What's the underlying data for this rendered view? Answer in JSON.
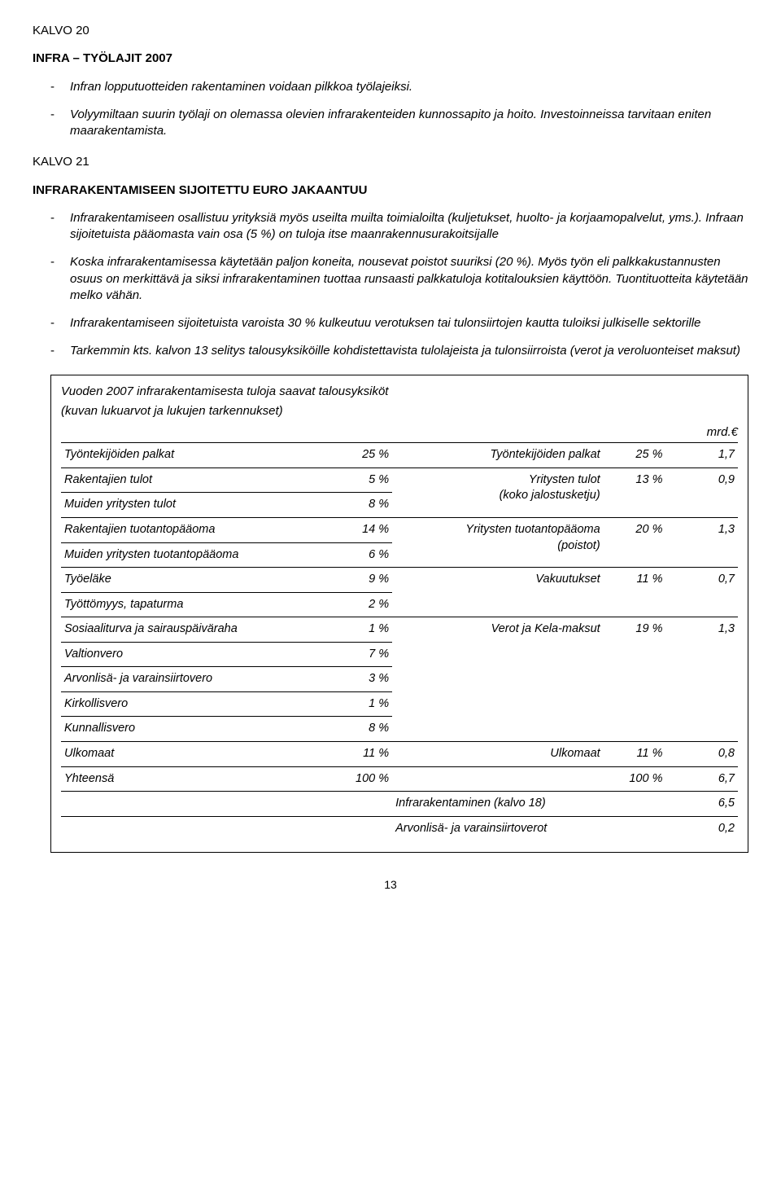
{
  "kalvo20": {
    "label": "KALVO 20",
    "title": "INFRA – TYÖLAJIT 2007",
    "bullets": [
      "Infran lopputuotteiden rakentaminen voidaan pilkkoa työlajeiksi.",
      "Volyymiltaan suurin työlaji on olemassa olevien infrarakenteiden kunnossapito ja hoito. Investoinneissa tarvitaan eniten maarakentamista."
    ]
  },
  "kalvo21": {
    "label": "KALVO 21",
    "title": "INFRARAKENTAMISEEN SIJOITETTU EURO JAKAANTUU",
    "bullets": [
      "Infrarakentamiseen osallistuu yrityksiä myös useilta muilta toimialoilta (kuljetukset, huolto- ja korjaamopalvelut, yms.). Infraan sijoitetuista pääomasta vain osa (5 %) on tuloja itse maanrakennusurakoitsijalle",
      "Koska infrarakentamisessa käytetään paljon koneita, nousevat poistot suuriksi (20 %). Myös työn eli palkkakustannusten osuus on merkittävä ja siksi infrarakentaminen tuottaa runsaasti palkkatuloja kotitalouksien käyttöön. Tuontituotteita käytetään melko vähän.",
      "Infrarakentamiseen sijoitetuista varoista 30 % kulkeutuu verotuksen tai tulonsiirtojen kautta tuloiksi julkiselle sektorille",
      "Tarkemmin kts. kalvon 13 selitys talousyksiköille kohdistettavista tulolajeista ja tulonsiirroista (verot ja veroluonteiset maksut)"
    ]
  },
  "table": {
    "header1": "Vuoden 2007 infrarakentamisesta tuloja saavat talousyksiköt",
    "header2": "(kuvan lukuarvot ja lukujen tarkennukset)",
    "mrd_label": "mrd.€",
    "groups": [
      {
        "rows": [
          {
            "label": "Työntekijöiden palkat",
            "pct": "25 %"
          }
        ],
        "group_label": "Työntekijöiden palkat",
        "group_pct": "25 %",
        "group_val": "1,7"
      },
      {
        "rows": [
          {
            "label": "Rakentajien tulot",
            "pct": "5 %"
          },
          {
            "label": "Muiden yritysten tulot",
            "pct": "8 %"
          }
        ],
        "group_label": "Yritysten tulot",
        "group_sub": "(koko jalostusketju)",
        "group_pct": "13 %",
        "group_val": "0,9"
      },
      {
        "rows": [
          {
            "label": "Rakentajien tuotantopääoma",
            "pct": "14 %"
          },
          {
            "label": "Muiden yritysten tuotantopääoma",
            "pct": "6 %"
          }
        ],
        "group_label": "Yritysten tuotantopääoma",
        "group_sub": "(poistot)",
        "group_pct": "20 %",
        "group_val": "1,3"
      },
      {
        "rows": [
          {
            "label": "Työeläke",
            "pct": "9 %"
          },
          {
            "label": "Työttömyys, tapaturma",
            "pct": "2 %"
          }
        ],
        "group_label": "Vakuutukset",
        "group_pct": "11 %",
        "group_val": "0,7"
      },
      {
        "rows": [
          {
            "label": "Sosiaaliturva ja sairauspäiväraha",
            "pct": "1 %"
          },
          {
            "label": "Valtionvero",
            "pct": "7 %"
          },
          {
            "label": "Arvonlisä- ja varainsiirtovero",
            "pct": "3 %"
          },
          {
            "label": "Kirkollisvero",
            "pct": "1 %"
          },
          {
            "label": "Kunnallisvero",
            "pct": "8 %"
          }
        ],
        "group_label": "Verot ja Kela-maksut",
        "group_pct": "19 %",
        "group_val": "1,3"
      },
      {
        "rows": [
          {
            "label": "Ulkomaat",
            "pct": "11 %"
          }
        ],
        "group_label": "Ulkomaat",
        "group_pct": "11 %",
        "group_val": "0,8"
      },
      {
        "rows": [
          {
            "label": "Yhteensä",
            "pct": "100 %"
          }
        ],
        "group_label": "",
        "group_pct": "100 %",
        "group_val": "6,7"
      }
    ],
    "footer": [
      {
        "label": "Infrarakentaminen (kalvo 18)",
        "val": "6,5"
      },
      {
        "label": "Arvonlisä- ja varainsiirtoverot",
        "val": "0,2"
      }
    ]
  },
  "page_number": "13"
}
